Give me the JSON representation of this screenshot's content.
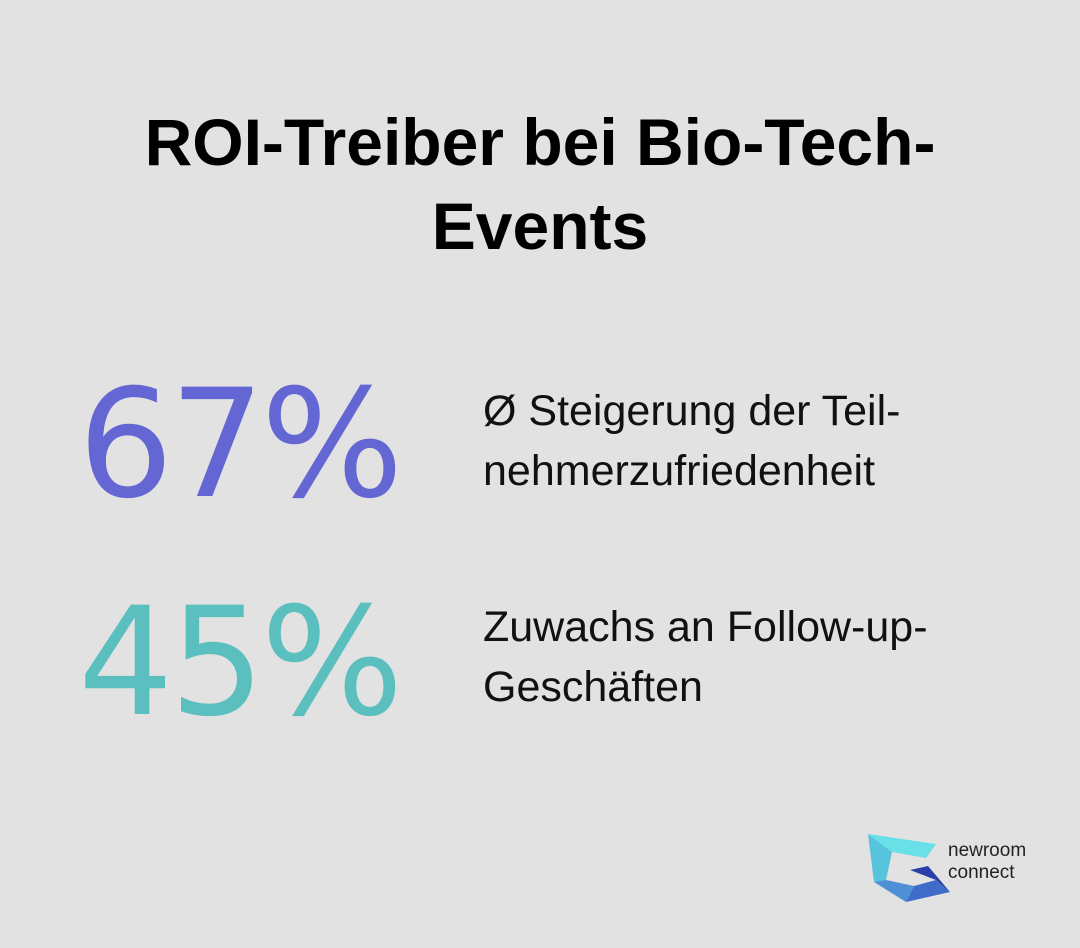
{
  "title": "ROI-Treiber bei Bio-Tech-Events",
  "stats": [
    {
      "value": "67%",
      "label_line1": "Ø Steigerung der Teil-",
      "label_line2": "nehmerzufriedenheit",
      "color": "#6466d3"
    },
    {
      "value": "45%",
      "label_line1": "Zuwachs an Follow-up-",
      "label_line2": "Geschäften",
      "color": "#5cbfbf"
    }
  ],
  "logo": {
    "line1": "newroom",
    "line2": "connect"
  }
}
